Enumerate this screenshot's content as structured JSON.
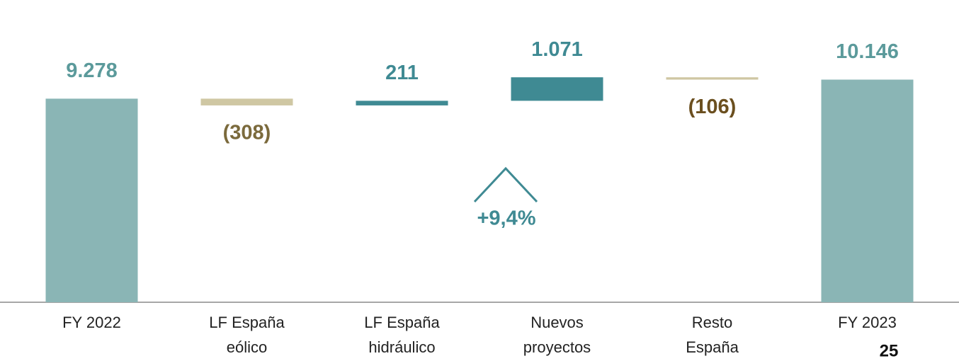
{
  "chart_data": {
    "type": "waterfall",
    "categories": [
      [
        "FY 2022"
      ],
      [
        "LF España",
        "eólico"
      ],
      [
        "LF España",
        "hidráulico"
      ],
      [
        "Nuevos",
        "proyectos"
      ],
      [
        "Resto",
        "España"
      ],
      [
        "FY 2023"
      ]
    ],
    "values": [
      9278,
      -308,
      211,
      1071,
      -106,
      10146
    ],
    "value_labels": [
      "9.278",
      "(308)",
      "211",
      "1.071",
      "(106)",
      "10.146"
    ],
    "measures": [
      "absolute",
      "relative",
      "relative",
      "relative",
      "relative",
      "total"
    ],
    "colors": [
      "#8ab5b5",
      "#cfc7a3",
      "#3f8a93",
      "#3f8a93",
      "#cfc7a3",
      "#8ab5b5"
    ],
    "label_colors": [
      "#5b9a9b",
      "#7b6a3c",
      "#3f8a93",
      "#3f8a93",
      "#6b4f1f",
      "#5b9a9b"
    ],
    "ylim": [
      0,
      11000
    ],
    "annotation": "+9,4%",
    "page_number": "25"
  }
}
